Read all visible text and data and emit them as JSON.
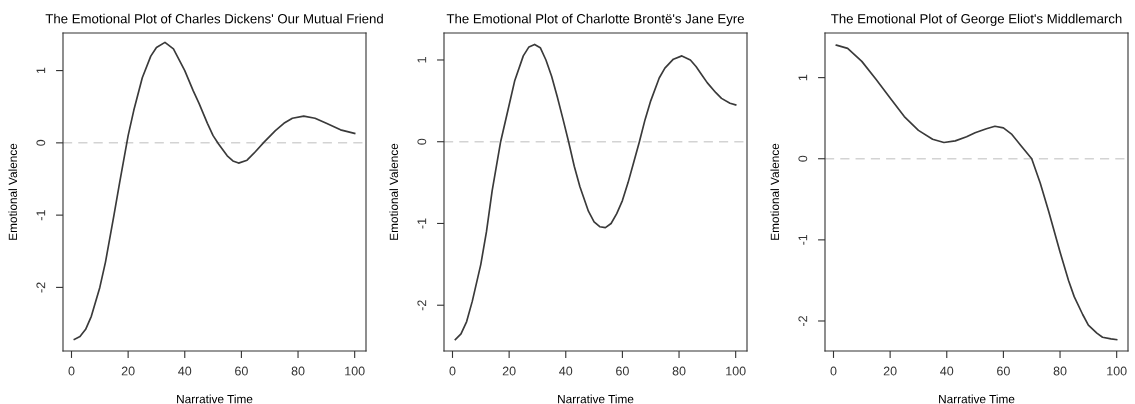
{
  "chart_data": [
    {
      "type": "line",
      "title": "The Emotional Plot of Charles Dickens' Our Mutual Friend",
      "xlabel": "Narrative Time",
      "ylabel": "Emotional Valence",
      "xlim": [
        -3,
        104
      ],
      "ylim": [
        -2.88,
        1.52
      ],
      "xticks": [
        0,
        20,
        40,
        60,
        80,
        100
      ],
      "yticks": [
        -2,
        -1,
        0,
        1
      ],
      "grid": false,
      "legend": false,
      "marker": "none",
      "line_style": "solid",
      "ref_lines": [
        {
          "axis": "y",
          "value": 0,
          "color": "#d3d3d3",
          "line_style": "dashed"
        }
      ],
      "series": [
        {
          "color": "#3a3a3a",
          "x": [
            1,
            3,
            5,
            7,
            10,
            12,
            15,
            17,
            20,
            22,
            25,
            28,
            30,
            33,
            36,
            40,
            43,
            45,
            48,
            50,
            52,
            55,
            57,
            59,
            62,
            65,
            68,
            72,
            75,
            78,
            82,
            86,
            90,
            95,
            100
          ],
          "values": [
            -2.72,
            -2.68,
            -2.58,
            -2.4,
            -2.0,
            -1.65,
            -1.0,
            -0.55,
            0.1,
            0.45,
            0.9,
            1.2,
            1.32,
            1.39,
            1.3,
            1.0,
            0.72,
            0.55,
            0.27,
            0.1,
            -0.02,
            -0.18,
            -0.25,
            -0.28,
            -0.24,
            -0.12,
            0.01,
            0.17,
            0.27,
            0.34,
            0.37,
            0.34,
            0.27,
            0.18,
            0.13
          ]
        }
      ]
    },
    {
      "type": "line",
      "title": "The Emotional Plot of Charlotte Brontë's Jane Eyre",
      "xlabel": "Narrative Time",
      "ylabel": "Emotional Valence",
      "xlim": [
        -3,
        104
      ],
      "ylim": [
        -2.56,
        1.33
      ],
      "xticks": [
        0,
        20,
        40,
        60,
        80,
        100
      ],
      "yticks": [
        -2,
        -1,
        0,
        1
      ],
      "grid": false,
      "legend": false,
      "marker": "none",
      "line_style": "solid",
      "ref_lines": [
        {
          "axis": "y",
          "value": 0,
          "color": "#d3d3d3",
          "line_style": "dashed"
        }
      ],
      "series": [
        {
          "color": "#3a3a3a",
          "x": [
            1,
            3,
            5,
            7,
            10,
            12,
            14,
            17,
            20,
            22,
            25,
            27,
            29,
            31,
            33,
            35,
            37,
            39,
            41,
            43,
            45,
            48,
            50,
            52,
            54,
            56,
            58,
            60,
            62,
            64,
            66,
            68,
            70,
            73,
            75,
            78,
            81,
            84,
            86,
            88,
            90,
            93,
            95,
            98,
            100
          ],
          "values": [
            -2.42,
            -2.35,
            -2.2,
            -1.95,
            -1.5,
            -1.1,
            -0.6,
            0.0,
            0.45,
            0.75,
            1.05,
            1.16,
            1.19,
            1.15,
            1.0,
            0.8,
            0.55,
            0.28,
            0.0,
            -0.3,
            -0.55,
            -0.85,
            -0.98,
            -1.04,
            -1.05,
            -1.0,
            -0.88,
            -0.72,
            -0.5,
            -0.25,
            0.0,
            0.27,
            0.5,
            0.78,
            0.9,
            1.01,
            1.05,
            1.0,
            0.92,
            0.82,
            0.72,
            0.6,
            0.53,
            0.47,
            0.45
          ]
        }
      ]
    },
    {
      "type": "line",
      "title": "The Emotional Plot of George Eliot's Middlemarch",
      "xlabel": "Narrative Time",
      "ylabel": "Emotional Valence",
      "xlim": [
        -3,
        104
      ],
      "ylim": [
        -2.37,
        1.55
      ],
      "xticks": [
        0,
        20,
        40,
        60,
        80,
        100
      ],
      "yticks": [
        -2,
        -1,
        0,
        1
      ],
      "grid": false,
      "legend": false,
      "marker": "none",
      "line_style": "solid",
      "ref_lines": [
        {
          "axis": "y",
          "value": 0,
          "color": "#d3d3d3",
          "line_style": "dashed"
        }
      ],
      "series": [
        {
          "color": "#3a3a3a",
          "x": [
            1,
            5,
            10,
            15,
            20,
            25,
            30,
            35,
            39,
            43,
            47,
            50,
            54,
            57,
            60,
            63,
            66,
            70,
            73,
            76,
            80,
            83,
            85,
            88,
            90,
            93,
            95,
            98,
            100
          ],
          "values": [
            1.4,
            1.36,
            1.2,
            0.98,
            0.75,
            0.52,
            0.35,
            0.24,
            0.2,
            0.22,
            0.27,
            0.32,
            0.37,
            0.4,
            0.38,
            0.3,
            0.17,
            0.0,
            -0.3,
            -0.65,
            -1.15,
            -1.5,
            -1.7,
            -1.92,
            -2.05,
            -2.15,
            -2.2,
            -2.22,
            -2.23
          ]
        }
      ]
    }
  ]
}
